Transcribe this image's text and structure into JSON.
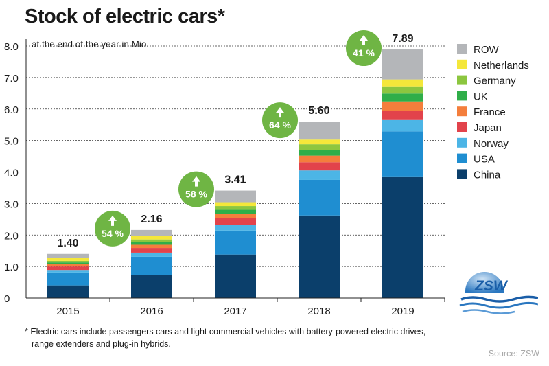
{
  "title": "Stock of electric cars*",
  "footnote": {
    "line1": "* Electric cars include passengers cars and light commercial vehicles with battery-powered electric drives,",
    "line2": "range extenders and plug-in hybrids."
  },
  "source": "Source: ZSW",
  "logo_text": "ZSW",
  "chart_data": {
    "type": "bar",
    "stacked": true,
    "title": "Stock of electric cars*",
    "subtitle": "at the end of the year in Mio.",
    "xlabel": "",
    "ylabel": "",
    "ylim": [
      0,
      8.0
    ],
    "yticks": [
      "0",
      "1.0",
      "2.0",
      "3.0",
      "4.0",
      "5.0",
      "6.0",
      "7.0",
      "8.0"
    ],
    "categories": [
      "2015",
      "2016",
      "2017",
      "2018",
      "2019"
    ],
    "totals": [
      "1.40",
      "2.16",
      "3.41",
      "5.60",
      "7.89"
    ],
    "growth": [
      "54 %",
      "58 %",
      "64 %",
      "41 %"
    ],
    "legend_position": "right",
    "series": [
      {
        "name": "China",
        "color": "#0b3f6b",
        "values": [
          0.4,
          0.73,
          1.38,
          2.62,
          3.84
        ]
      },
      {
        "name": "USA",
        "color": "#1f8ed1",
        "values": [
          0.41,
          0.58,
          0.76,
          1.13,
          1.45
        ]
      },
      {
        "name": "Norway",
        "color": "#4cb5e6",
        "values": [
          0.08,
          0.13,
          0.18,
          0.3,
          0.36
        ]
      },
      {
        "name": "Japan",
        "color": "#e2434b",
        "values": [
          0.11,
          0.15,
          0.21,
          0.26,
          0.3
        ]
      },
      {
        "name": "France",
        "color": "#f47e3c",
        "values": [
          0.07,
          0.1,
          0.14,
          0.21,
          0.29
        ]
      },
      {
        "name": "UK",
        "color": "#2fae49",
        "values": [
          0.06,
          0.09,
          0.13,
          0.18,
          0.25
        ]
      },
      {
        "name": "Germany",
        "color": "#8cc63f",
        "values": [
          0.05,
          0.08,
          0.12,
          0.18,
          0.23
        ]
      },
      {
        "name": "Netherlands",
        "color": "#f4e73a",
        "values": [
          0.09,
          0.11,
          0.12,
          0.15,
          0.22
        ]
      },
      {
        "name": "ROW",
        "color": "#b4b6b9",
        "values": [
          0.13,
          0.19,
          0.37,
          0.57,
          0.95
        ]
      }
    ],
    "colors": {
      "axis": "#222222",
      "grid": "#333333",
      "bubble": "#6fb544",
      "text": "#1a1a1a"
    }
  }
}
